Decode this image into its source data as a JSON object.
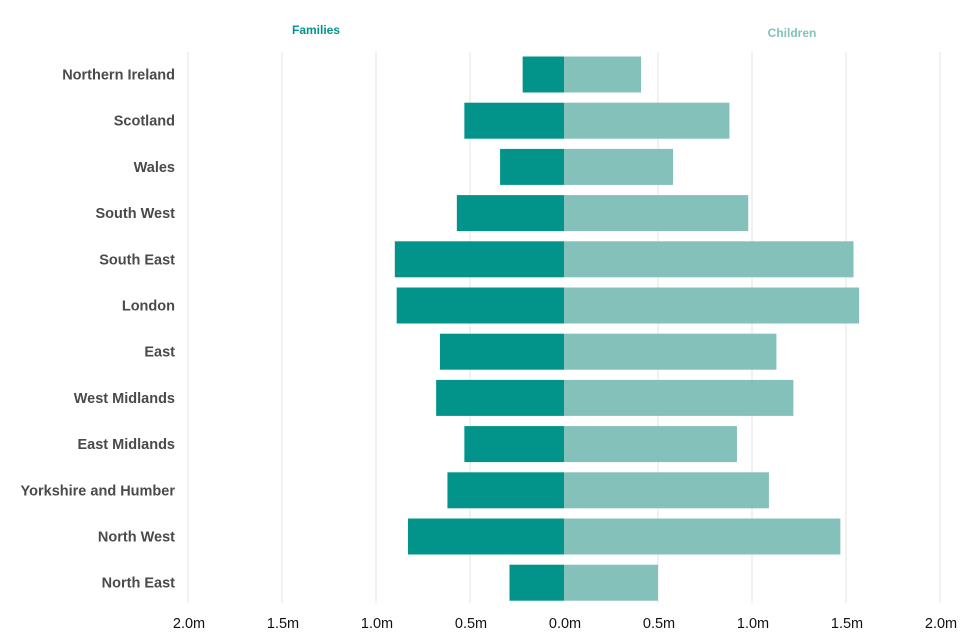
{
  "chart_data": {
    "type": "bar",
    "orientation": "horizontal-diverging",
    "categories": [
      "Northern Ireland",
      "Scotland",
      "Wales",
      "South West",
      "South East",
      "London",
      "East",
      "West Midlands",
      "East Midlands",
      "Yorkshire and Humber",
      "North West",
      "North East"
    ],
    "series": [
      {
        "name": "Families",
        "side": "left",
        "color": "#02948a",
        "values": [
          0.22,
          0.53,
          0.34,
          0.57,
          0.9,
          0.89,
          0.66,
          0.68,
          0.53,
          0.62,
          0.83,
          0.29
        ]
      },
      {
        "name": "Children",
        "side": "right",
        "color": "#84c1ba",
        "values": [
          0.41,
          0.88,
          0.58,
          0.98,
          1.54,
          1.57,
          1.13,
          1.22,
          0.92,
          1.09,
          1.47,
          0.5
        ]
      }
    ],
    "x_ticks": [
      "2.0m",
      "1.5m",
      "1.0m",
      "0.5m",
      "0.0m",
      "0.5m",
      "1.0m",
      "1.5m",
      "2.0m"
    ],
    "xlim": [
      -2.0,
      2.0
    ],
    "grid": "vertical",
    "legend": "series labels at top above each side"
  }
}
